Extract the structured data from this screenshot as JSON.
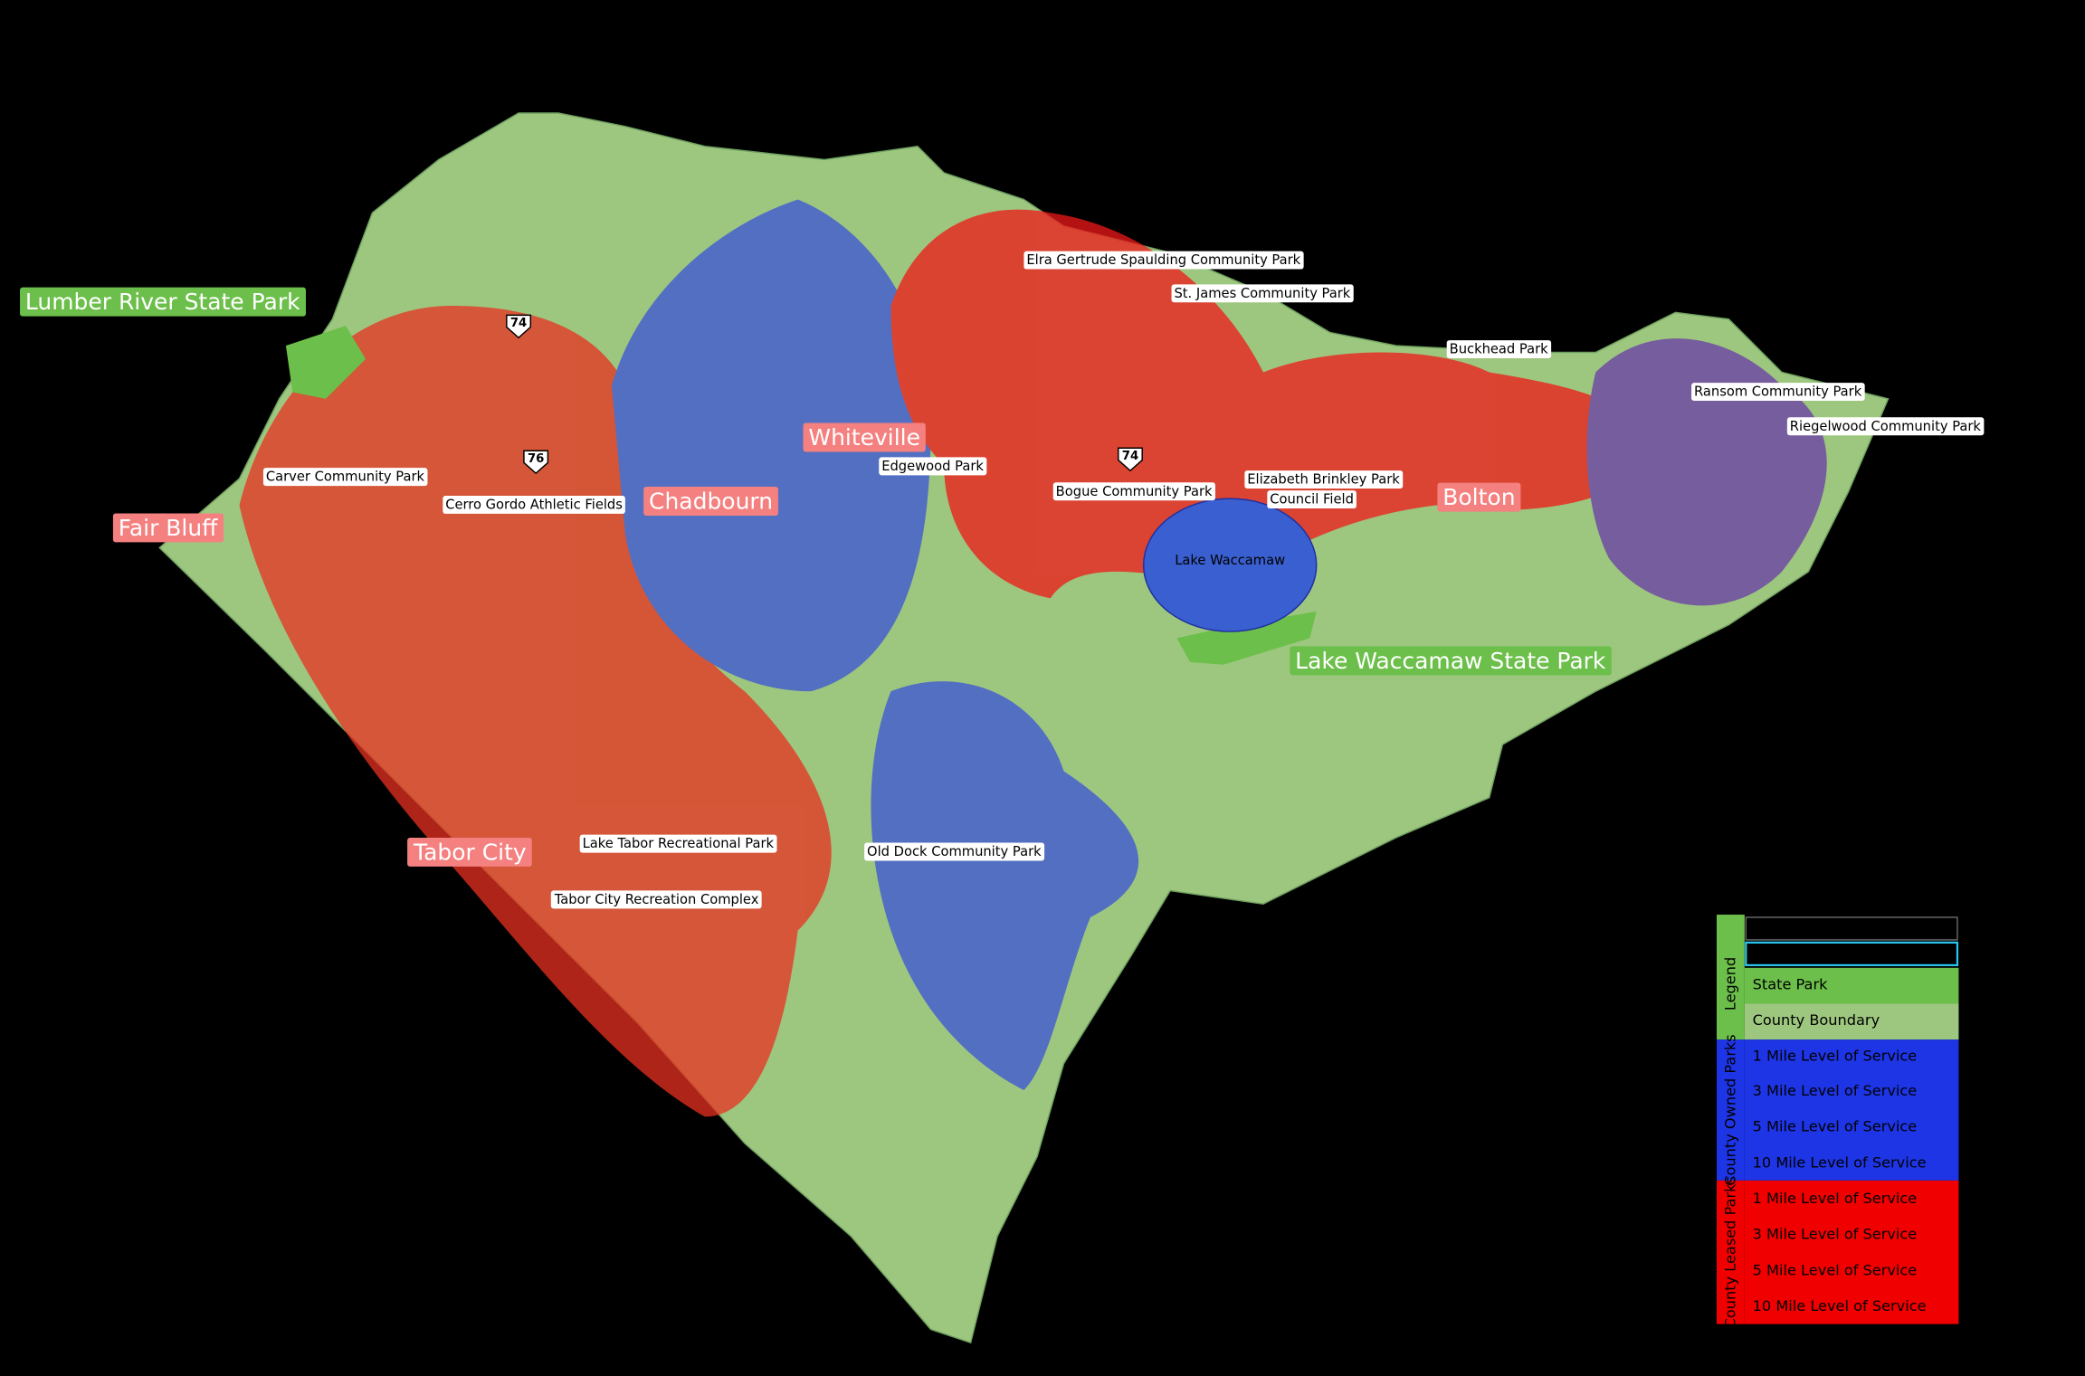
{
  "state_parks": [
    "Lumber River State Park",
    "Lake Waccamaw State Park"
  ],
  "towns": [
    "Whiteville",
    "Chadbourn",
    "Fair Bluff",
    "Tabor City",
    "Bolton"
  ],
  "parks": [
    "Elra Gertrude Spaulding Community Park",
    "St. James Community Park",
    "Buckhead Park",
    "Ransom Community Park",
    "Riegelwood Community Park",
    "Edgewood Park",
    "Carver Community Park",
    "Cerro Gordo Athletic Fields",
    "Bogue Community Park",
    "Elizabeth Brinkley Park",
    "Council Field",
    "Lake Tabor Recreational Park",
    "Old Dock Community Park",
    "Tabor City Recreation Complex"
  ],
  "highways": [
    "74",
    "76",
    "74"
  ],
  "lake": "Lake Waccamaw",
  "legend": {
    "title": "Legend",
    "items": [
      "State Park",
      "County Boundary"
    ],
    "groups": [
      {
        "label": "County Owned Parks",
        "items": [
          "1 Mile Level of Service",
          "3 Mile Level of Service",
          "5 Mile Level of Service",
          "10 Mile Level of Service"
        ]
      },
      {
        "label": "County Leased Parks",
        "items": [
          "1 Mile Level of Service",
          "3 Mile Level of Service",
          "5 Mile Level of Service",
          "10 Mile Level of Service"
        ]
      }
    ]
  }
}
